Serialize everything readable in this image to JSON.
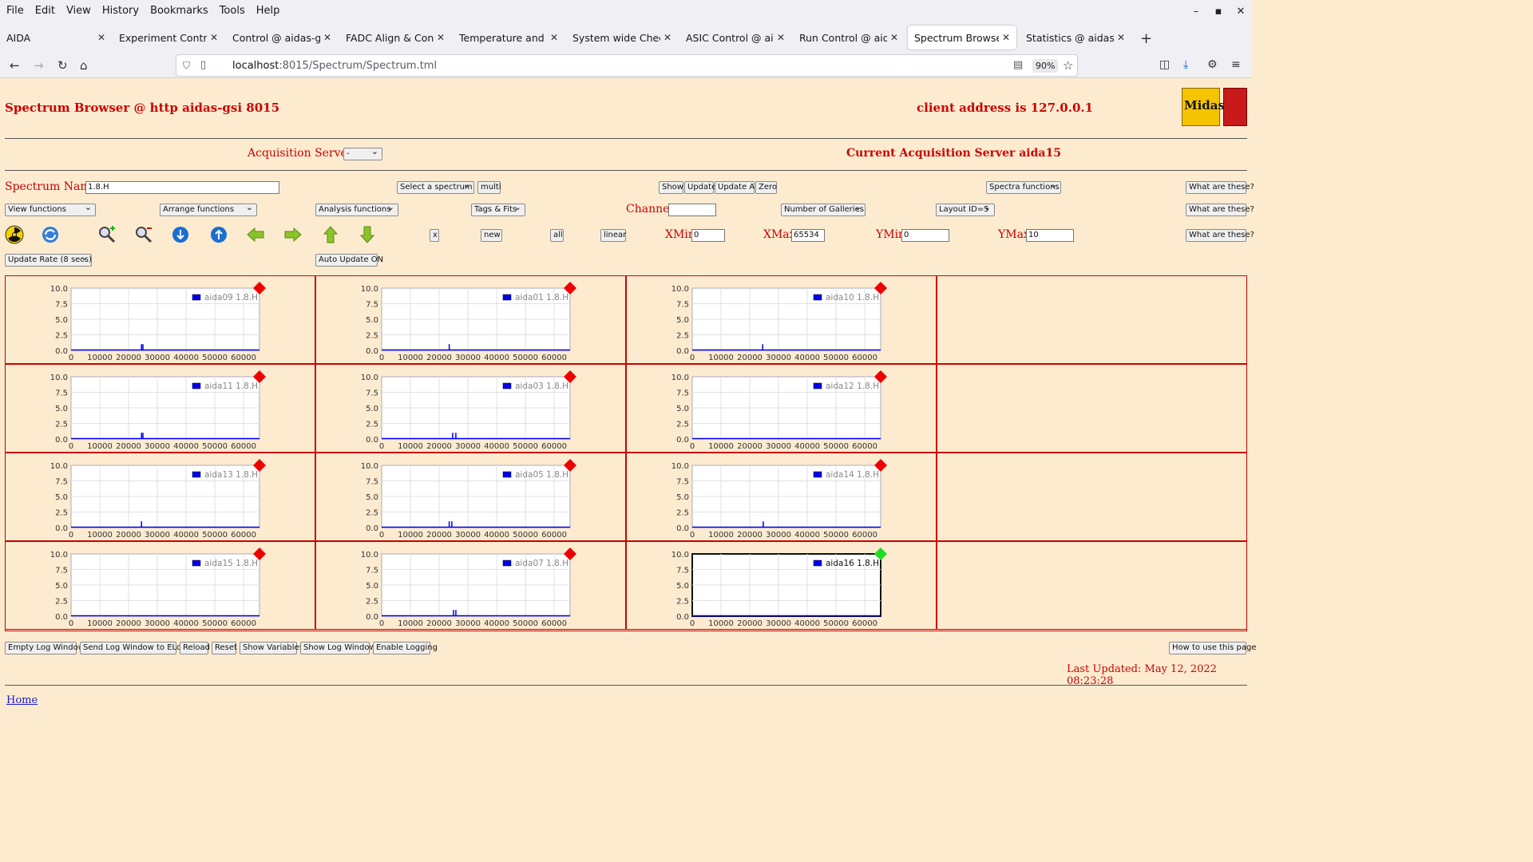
{
  "browser": {
    "menu": [
      "File",
      "Edit",
      "View",
      "History",
      "Bookmarks",
      "Tools",
      "Help"
    ],
    "tabs": [
      {
        "label": "AIDA",
        "active": false
      },
      {
        "label": "Experiment Control @",
        "active": false
      },
      {
        "label": "Control @ aidas-gsi",
        "active": false
      },
      {
        "label": "FADC Align & Control",
        "active": false
      },
      {
        "label": "Temperature and stat",
        "active": false
      },
      {
        "label": "System wide Checks",
        "active": false
      },
      {
        "label": "ASIC Control @ aidas",
        "active": false
      },
      {
        "label": "Run Control @ aidas-",
        "active": false
      },
      {
        "label": "Spectrum Browser @",
        "active": true
      },
      {
        "label": "Statistics @ aidas-gsi",
        "active": false
      }
    ],
    "url_host": "localhost",
    "url_rest": ":8015/Spectrum/Spectrum.tml",
    "zoom": "90%"
  },
  "header": {
    "title": "Spectrum Browser @ http aidas-gsi 8015",
    "client_address": "client address is 127.0.0.1",
    "logo_text": "Midas"
  },
  "acquisition": {
    "label": "Acquisition Servers",
    "selected": "-",
    "current": "Current Acquisition Server aida15"
  },
  "controls": {
    "spectrum_name_label": "Spectrum Name:",
    "spectrum_name_value": "1.8.H",
    "select_spectrum": "Select a spectrum",
    "multi": "multi",
    "show": "Show",
    "update": "Update",
    "update_all": "Update All",
    "zero": "Zero",
    "spectra_functions": "Spectra functions",
    "what_are_these": "What are these?",
    "view_functions": "View functions",
    "arrange_functions": "Arrange functions",
    "analysis_functions": "Analysis functions",
    "tags_fits": "Tags & Fits",
    "channel_label": "Channel:",
    "channel_value": "",
    "num_galleries": "Number of Galleries",
    "layout_id": "Layout ID=5",
    "x_button": "x",
    "new_button": "new",
    "all_button": "all",
    "linear_button": "linear",
    "xmin_label": "XMin",
    "xmin_value": "0",
    "xmax_label": "XMax",
    "xmax_value": "65534",
    "ymin_label": "YMin",
    "ymin_value": "0",
    "ymax_label": "YMax",
    "ymax_value": "10",
    "update_rate": "Update Rate (8 secs)",
    "auto_update": "Auto Update ON"
  },
  "colors": {
    "accent_red": "#cc0000",
    "series_blue": "#0000ee",
    "status_bad": "#ee0000",
    "status_ok": "#22dd22",
    "page_bg": "#fdebd0"
  },
  "chart_data": [
    {
      "type": "bar",
      "legend": "aida09 1.8.H",
      "status": "red",
      "xlim": [
        0,
        65534
      ],
      "ylim": [
        0,
        10
      ],
      "xticks": [
        "0",
        "10000",
        "20000",
        "30000",
        "40000",
        "50000",
        "60000"
      ],
      "yticks": [
        "0.0",
        "2.5",
        "5.0",
        "7.5",
        "10.0"
      ],
      "x": [
        24500,
        25000
      ],
      "y": [
        1,
        1
      ]
    },
    {
      "type": "bar",
      "legend": "aida01 1.8.H",
      "status": "red",
      "xlim": [
        0,
        65534
      ],
      "ylim": [
        0,
        10
      ],
      "xticks": [
        "0",
        "10000",
        "20000",
        "30000",
        "40000",
        "50000",
        "60000"
      ],
      "yticks": [
        "0.0",
        "2.5",
        "5.0",
        "7.5",
        "10.0"
      ],
      "x": [
        23500
      ],
      "y": [
        1
      ]
    },
    {
      "type": "bar",
      "legend": "aida10 1.8.H",
      "status": "red",
      "xlim": [
        0,
        65534
      ],
      "ylim": [
        0,
        10
      ],
      "xticks": [
        "0",
        "10000",
        "20000",
        "30000",
        "40000",
        "50000",
        "60000"
      ],
      "yticks": [
        "0.0",
        "2.5",
        "5.0",
        "7.5",
        "10.0"
      ],
      "x": [
        24500
      ],
      "y": [
        1
      ]
    },
    {
      "type": "bar",
      "legend": "aida11 1.8.H",
      "status": "red",
      "xlim": [
        0,
        65534
      ],
      "ylim": [
        0,
        10
      ],
      "xticks": [
        "0",
        "10000",
        "20000",
        "30000",
        "40000",
        "50000",
        "60000"
      ],
      "yticks": [
        "0.0",
        "2.5",
        "5.0",
        "7.5",
        "10.0"
      ],
      "x": [
        24500,
        25000
      ],
      "y": [
        1,
        1
      ]
    },
    {
      "type": "bar",
      "legend": "aida03 1.8.H",
      "status": "red",
      "xlim": [
        0,
        65534
      ],
      "ylim": [
        0,
        10
      ],
      "xticks": [
        "0",
        "10000",
        "20000",
        "30000",
        "40000",
        "50000",
        "60000"
      ],
      "yticks": [
        "0.0",
        "2.5",
        "5.0",
        "7.5",
        "10.0"
      ],
      "x": [
        24700,
        25800
      ],
      "y": [
        1,
        1
      ]
    },
    {
      "type": "bar",
      "legend": "aida12 1.8.H",
      "status": "red",
      "xlim": [
        0,
        65534
      ],
      "ylim": [
        0,
        10
      ],
      "xticks": [
        "0",
        "10000",
        "20000",
        "30000",
        "40000",
        "50000",
        "60000"
      ],
      "yticks": [
        "0.0",
        "2.5",
        "5.0",
        "7.5",
        "10.0"
      ],
      "x": [],
      "y": []
    },
    {
      "type": "bar",
      "legend": "aida13 1.8.H",
      "status": "red",
      "xlim": [
        0,
        65534
      ],
      "ylim": [
        0,
        10
      ],
      "xticks": [
        "0",
        "10000",
        "20000",
        "30000",
        "40000",
        "50000",
        "60000"
      ],
      "yticks": [
        "0.0",
        "2.5",
        "5.0",
        "7.5",
        "10.0"
      ],
      "x": [
        24500
      ],
      "y": [
        1
      ]
    },
    {
      "type": "bar",
      "legend": "aida05 1.8.H",
      "status": "red",
      "xlim": [
        0,
        65534
      ],
      "ylim": [
        0,
        10
      ],
      "xticks": [
        "0",
        "10000",
        "20000",
        "30000",
        "40000",
        "50000",
        "60000"
      ],
      "yticks": [
        "0.0",
        "2.5",
        "5.0",
        "7.5",
        "10.0"
      ],
      "x": [
        23500,
        24400
      ],
      "y": [
        1,
        1
      ]
    },
    {
      "type": "bar",
      "legend": "aida14 1.8.H",
      "status": "red",
      "xlim": [
        0,
        65534
      ],
      "ylim": [
        0,
        10
      ],
      "xticks": [
        "0",
        "10000",
        "20000",
        "30000",
        "40000",
        "50000",
        "60000"
      ],
      "yticks": [
        "0.0",
        "2.5",
        "5.0",
        "7.5",
        "10.0"
      ],
      "x": [
        24700
      ],
      "y": [
        1
      ]
    },
    {
      "type": "bar",
      "legend": "aida15 1.8.H",
      "status": "red",
      "xlim": [
        0,
        65534
      ],
      "ylim": [
        0,
        10
      ],
      "xticks": [
        "0",
        "10000",
        "20000",
        "30000",
        "40000",
        "50000",
        "60000"
      ],
      "yticks": [
        "0.0",
        "2.5",
        "5.0",
        "7.5",
        "10.0"
      ],
      "x": [],
      "y": []
    },
    {
      "type": "bar",
      "legend": "aida07 1.8.H",
      "status": "red",
      "xlim": [
        0,
        65534
      ],
      "ylim": [
        0,
        10
      ],
      "xticks": [
        "0",
        "10000",
        "20000",
        "30000",
        "40000",
        "50000",
        "60000"
      ],
      "yticks": [
        "0.0",
        "2.5",
        "5.0",
        "7.5",
        "10.0"
      ],
      "x": [
        25000,
        25800
      ],
      "y": [
        1,
        1
      ]
    },
    {
      "type": "bar",
      "legend": "aida16 1.8.H",
      "status": "green",
      "xlim": [
        0,
        65534
      ],
      "ylim": [
        0,
        10
      ],
      "xticks": [
        "0",
        "10000",
        "20000",
        "30000",
        "40000",
        "50000",
        "60000"
      ],
      "yticks": [
        "0.0",
        "2.5",
        "5.0",
        "7.5",
        "10.0"
      ],
      "x": [],
      "y": []
    }
  ],
  "footer": {
    "buttons": [
      "Empty Log Window",
      "Send Log Window to ELog",
      "Reload",
      "Reset",
      "Show Variables",
      "Show Log Window",
      "Enable Logging"
    ],
    "help": "How to use this page",
    "last_updated": "Last Updated: May 12, 2022 08:23:28",
    "home": "Home"
  }
}
